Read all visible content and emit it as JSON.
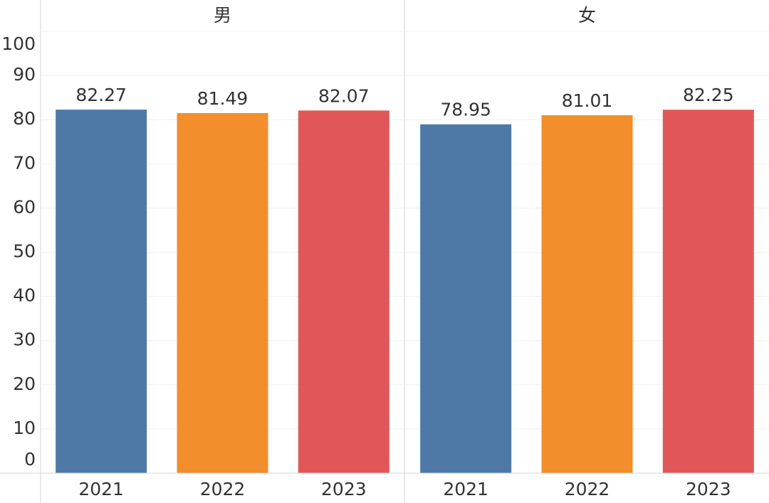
{
  "chart_data": {
    "type": "bar",
    "categories": [
      "2021",
      "2022",
      "2023"
    ],
    "colors": [
      "#4e79a7",
      "#f28e2b",
      "#e15759"
    ],
    "facets": [
      {
        "name": "男",
        "values": [
          82.27,
          81.49,
          82.07
        ]
      },
      {
        "name": "女",
        "values": [
          78.95,
          81.01,
          82.25
        ]
      }
    ],
    "ylim": [
      0,
      100
    ],
    "yticks": [
      0,
      10,
      20,
      30,
      40,
      50,
      60,
      70,
      80,
      90,
      100
    ],
    "grid": true
  }
}
